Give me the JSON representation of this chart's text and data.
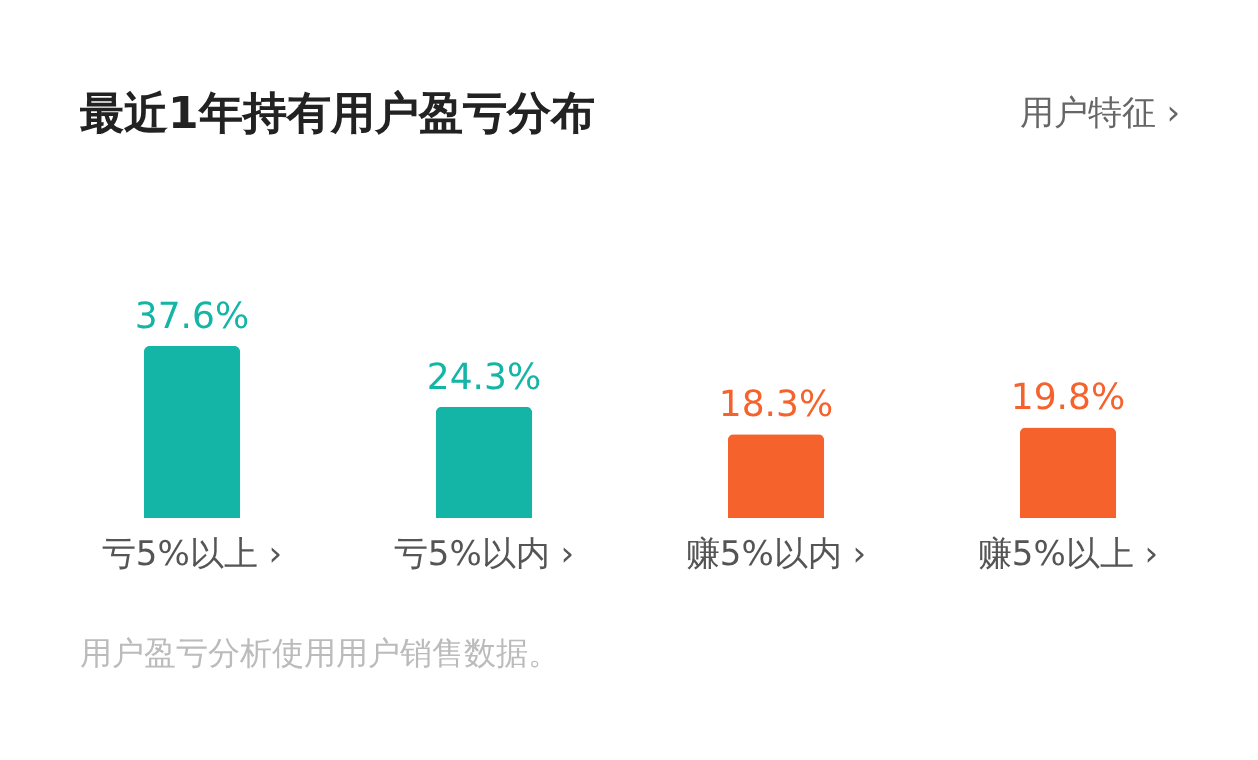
{
  "chart_data": {
    "type": "bar",
    "title": "最近1年持有用户盈亏分布",
    "categories": [
      "亏5%以上 ›",
      "亏5%以内 ›",
      "赚5%以内 ›",
      "赚5%以上 ›"
    ],
    "values": [
      37.6,
      24.3,
      18.3,
      19.8
    ],
    "colors": [
      "#14b5a6",
      "#14b5a6",
      "#f6622b",
      "#f6622b"
    ],
    "value_labels": [
      "37.6%",
      "24.3%",
      "18.3%",
      "19.8%"
    ],
    "annotations": [
      "用户特征 ›",
      "用户盈亏分析使用用户销售数据。"
    ]
  }
}
